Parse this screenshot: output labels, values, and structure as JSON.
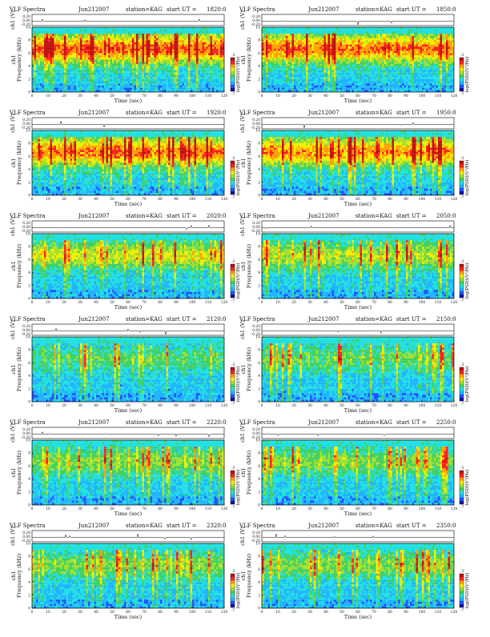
{
  "common": {
    "title": "VLF Spectra",
    "date": "Jun212007",
    "station": "station=KAG",
    "start_prefix": "start  UT  =",
    "ch_label": "ch1 (V)",
    "ylabel_line1": "ch1",
    "ylabel_line2": "Frequency  (kHz)",
    "xlabel": "Time  (sec)",
    "cbar_label": "log(PSD)(V²/Hz)",
    "cbar_top": "-3",
    "cbar_bottom": "-7",
    "wave_ticks": [
      "0.20",
      "0.00",
      "-0.20"
    ],
    "x_ticks": [
      "0",
      "10",
      "20",
      "30",
      "40",
      "50",
      "60",
      "70",
      "80",
      "90",
      "100",
      "110",
      "120"
    ],
    "y_ticks": [
      "0",
      "2",
      "4",
      "6",
      "8",
      "10"
    ],
    "colors": {
      "colormap": [
        "#1010a0",
        "#1e50ff",
        "#1eb4ff",
        "#20e0e0",
        "#40d060",
        "#a0e030",
        "#f0f000",
        "#ffa000",
        "#ff2020",
        "#c01010"
      ]
    }
  },
  "chart_data": [
    {
      "type": "heatmap",
      "panel": 1,
      "start_ut": "1820:0",
      "xlim": [
        0,
        120
      ],
      "ylim": [
        0,
        10
      ],
      "xlabel": "Time (sec)",
      "ylabel": "Frequency (kHz)",
      "colorbar_label": "log(PSD)(V²/Hz)",
      "colorbar_range": [
        -7,
        -3
      ],
      "activity": 0.86
    },
    {
      "type": "heatmap",
      "panel": 2,
      "start_ut": "1850:0",
      "xlim": [
        0,
        120
      ],
      "ylim": [
        0,
        10
      ],
      "xlabel": "Time (sec)",
      "ylabel": "Frequency (kHz)",
      "colorbar_label": "log(PSD)(V²/Hz)",
      "colorbar_range": [
        -7,
        -3
      ],
      "activity": 0.84
    },
    {
      "type": "heatmap",
      "panel": 3,
      "start_ut": "1920:0",
      "xlim": [
        0,
        120
      ],
      "ylim": [
        0,
        10
      ],
      "xlabel": "Time (sec)",
      "ylabel": "Frequency (kHz)",
      "colorbar_label": "log(PSD)(V²/Hz)",
      "colorbar_range": [
        -7,
        -3
      ],
      "activity": 0.82
    },
    {
      "type": "heatmap",
      "panel": 4,
      "start_ut": "1950:0",
      "xlim": [
        0,
        120
      ],
      "ylim": [
        0,
        10
      ],
      "xlabel": "Time (sec)",
      "ylabel": "Frequency (kHz)",
      "colorbar_label": "log(PSD)(V²/Hz)",
      "colorbar_range": [
        -7,
        -3
      ],
      "activity": 0.8
    },
    {
      "type": "heatmap",
      "panel": 5,
      "start_ut": "2020:0",
      "xlim": [
        0,
        120
      ],
      "ylim": [
        0,
        10
      ],
      "xlabel": "Time (sec)",
      "ylabel": "Frequency (kHz)",
      "colorbar_label": "log(PSD)(V²/Hz)",
      "colorbar_range": [
        -7,
        -3
      ],
      "activity": 0.55
    },
    {
      "type": "heatmap",
      "panel": 6,
      "start_ut": "2050:0",
      "xlim": [
        0,
        120
      ],
      "ylim": [
        0,
        10
      ],
      "xlabel": "Time (sec)",
      "ylabel": "Frequency (kHz)",
      "colorbar_label": "log(PSD)(V²/Hz)",
      "colorbar_range": [
        -7,
        -3
      ],
      "activity": 0.5
    },
    {
      "type": "heatmap",
      "panel": 7,
      "start_ut": "2120:0",
      "xlim": [
        0,
        120
      ],
      "ylim": [
        0,
        10
      ],
      "xlabel": "Time (sec)",
      "ylabel": "Frequency (kHz)",
      "colorbar_label": "log(PSD)(V²/Hz)",
      "colorbar_range": [
        -7,
        -3
      ],
      "activity": 0.32
    },
    {
      "type": "heatmap",
      "panel": 8,
      "start_ut": "2150:0",
      "xlim": [
        0,
        120
      ],
      "ylim": [
        0,
        10
      ],
      "xlabel": "Time (sec)",
      "ylabel": "Frequency (kHz)",
      "colorbar_label": "log(PSD)(V²/Hz)",
      "colorbar_range": [
        -7,
        -3
      ],
      "activity": 0.36
    },
    {
      "type": "heatmap",
      "panel": 9,
      "start_ut": "2220:0",
      "xlim": [
        0,
        120
      ],
      "ylim": [
        0,
        10
      ],
      "xlabel": "Time (sec)",
      "ylabel": "Frequency (kHz)",
      "colorbar_label": "log(PSD)(V²/Hz)",
      "colorbar_range": [
        -7,
        -3
      ],
      "activity": 0.42
    },
    {
      "type": "heatmap",
      "panel": 10,
      "start_ut": "2250:0",
      "xlim": [
        0,
        120
      ],
      "ylim": [
        0,
        10
      ],
      "xlabel": "Time (sec)",
      "ylabel": "Frequency (kHz)",
      "colorbar_label": "log(PSD)(V²/Hz)",
      "colorbar_range": [
        -7,
        -3
      ],
      "activity": 0.42
    },
    {
      "type": "heatmap",
      "panel": 11,
      "start_ut": "2320:0",
      "xlim": [
        0,
        120
      ],
      "ylim": [
        0,
        10
      ],
      "xlabel": "Time (sec)",
      "ylabel": "Frequency (kHz)",
      "colorbar_label": "log(PSD)(V²/Hz)",
      "colorbar_range": [
        -7,
        -3
      ],
      "activity": 0.4
    },
    {
      "type": "heatmap",
      "panel": 12,
      "start_ut": "2350:0",
      "xlim": [
        0,
        120
      ],
      "ylim": [
        0,
        10
      ],
      "xlabel": "Time (sec)",
      "ylabel": "Frequency (kHz)",
      "colorbar_label": "log(PSD)(V²/Hz)",
      "colorbar_range": [
        -7,
        -3
      ],
      "activity": 0.42
    }
  ]
}
